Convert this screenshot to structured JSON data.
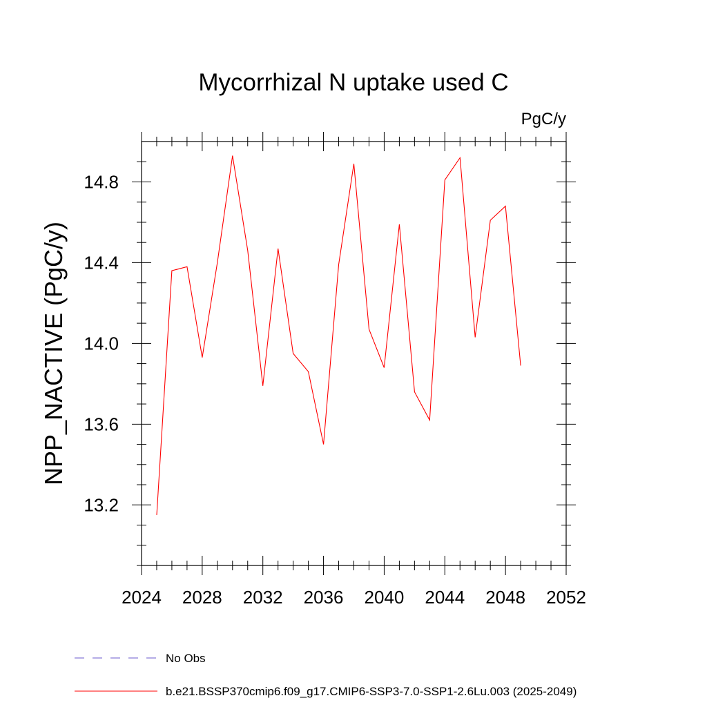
{
  "chart_data": {
    "type": "line",
    "title": "Mycorrhizal N uptake used C",
    "units": "PgC/y",
    "ylabel": "NPP_NACTIVE  (PgC/y)",
    "xlabel": "",
    "xlim": [
      2024,
      2052
    ],
    "ylim": [
      12.9,
      15.0
    ],
    "xticks": [
      2024,
      2028,
      2032,
      2036,
      2040,
      2044,
      2048,
      2052
    ],
    "yticks": [
      13.2,
      13.6,
      14.0,
      14.4,
      14.8
    ],
    "xtick_labels": [
      "2024",
      "2028",
      "2032",
      "2036",
      "2040",
      "2044",
      "2048",
      "2052"
    ],
    "ytick_labels": [
      "13.2",
      "13.6",
      "14.0",
      "14.4",
      "14.8"
    ],
    "series": [
      {
        "name": "b.e21.BSSP370cmip6.f09_g17.CMIP6-SSP3-7.0-SSP1-2.6Lu.003 (2025-2049)",
        "color": "#ff0000",
        "x": [
          2025,
          2026,
          2027,
          2028,
          2029,
          2030,
          2031,
          2032,
          2033,
          2034,
          2035,
          2036,
          2037,
          2038,
          2039,
          2040,
          2041,
          2042,
          2043,
          2044,
          2045,
          2046,
          2047,
          2048,
          2049
        ],
        "values": [
          13.15,
          14.36,
          14.38,
          13.93,
          14.4,
          14.93,
          14.46,
          13.79,
          14.47,
          13.95,
          13.86,
          13.5,
          14.39,
          14.89,
          14.07,
          13.88,
          14.59,
          13.76,
          13.62,
          14.81,
          14.92,
          14.03,
          14.61,
          14.68,
          13.89
        ]
      }
    ],
    "legend": [
      {
        "label": "No Obs",
        "style": "dashed",
        "color": "#6a5acd"
      },
      {
        "label": "b.e21.BSSP370cmip6.f09_g17.CMIP6-SSP3-7.0-SSP1-2.6Lu.003 (2025-2049)",
        "style": "solid",
        "color": "#ff0000"
      }
    ]
  }
}
